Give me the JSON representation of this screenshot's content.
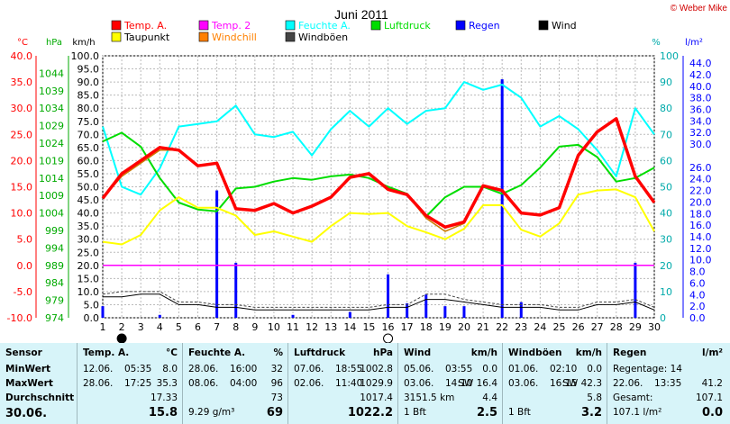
{
  "title": "Juni 2011",
  "copyright": "© Weber Mike",
  "colors": {
    "temp": "#ff0000",
    "taupunkt": "#ffff00",
    "feuchte": "#00ffff",
    "luftdruck": "#00dd00",
    "regen": "#0000ff",
    "wind": "#000000",
    "windboeen": "#444444",
    "windchill": "#ff8000",
    "temp2": "#ff00ff",
    "table_bg": "#d7f4f9"
  },
  "legend": [
    {
      "label": "Temp. A.",
      "color": "#ff0000"
    },
    {
      "label": "Temp. 2",
      "color": "#ff00ff"
    },
    {
      "label": "Feuchte A.",
      "color": "#00ffff"
    },
    {
      "label": "Luftdruck",
      "color": "#00dd00"
    },
    {
      "label": "Regen",
      "color": "#0000ff"
    },
    {
      "label": "Wind",
      "color": "#000000"
    },
    {
      "label": "Taupunkt",
      "color": "#ffff00"
    },
    {
      "label": "Windchill",
      "color": "#ff8000"
    },
    {
      "label": "Windböen",
      "color": "#444444"
    }
  ],
  "chart_data": {
    "type": "line",
    "title": "Juni 2011",
    "x": [
      1,
      2,
      3,
      4,
      5,
      6,
      7,
      8,
      9,
      10,
      11,
      12,
      13,
      14,
      15,
      16,
      17,
      18,
      19,
      20,
      21,
      22,
      23,
      24,
      25,
      26,
      27,
      28,
      29,
      30
    ],
    "axes": {
      "temp": {
        "unit": "°C",
        "min": -10,
        "max": 40,
        "ticks": [
          "40.0",
          "35.0",
          "30.0",
          "25.0",
          "20.0",
          "15.0",
          "10.0",
          "5.0",
          "0.0",
          "-5.0",
          "-10.0"
        ]
      },
      "pressure": {
        "unit": "hPa",
        "min": 974,
        "max": 1049,
        "ticks": [
          "1044",
          "1039",
          "1034",
          "1029",
          "1024",
          "1019",
          "1014",
          "1009",
          "1004",
          "999",
          "994",
          "989",
          "984",
          "979",
          "974"
        ]
      },
      "wind": {
        "unit": "km/h",
        "min": 0,
        "max": 100,
        "ticks": [
          "100.0",
          "95.0",
          "90.0",
          "85.0",
          "80.0",
          "75.0",
          "70.0",
          "65.0",
          "60.0",
          "55.0",
          "50.0",
          "45.0",
          "40.0",
          "35.0",
          "30.0",
          "25.0",
          "20.0",
          "15.0",
          "10.0",
          "5.0",
          "0.0"
        ]
      },
      "humidity": {
        "unit": "%",
        "min": 0,
        "max": 100,
        "ticks": [
          "100",
          "90",
          "80",
          "70",
          "60",
          "50",
          "40",
          "30",
          "20",
          "10",
          "0"
        ]
      },
      "rain": {
        "unit": "l/m²",
        "ticks": [
          "44.0",
          "42.0",
          "40.0",
          "38.0",
          "36.0",
          "34.0",
          "32.0",
          "30.0",
          "26.0",
          "24.0",
          "22.0",
          "20.0",
          "18.0",
          "16.0",
          "14.0",
          "12.0",
          "10.0",
          "8.0",
          "6.0",
          "4.0",
          "2.0",
          "0.0"
        ]
      }
    },
    "series": [
      {
        "name": "Temp. A.",
        "axis": "temp",
        "values": [
          12.8,
          17.5,
          20.0,
          22.5,
          22.0,
          19.0,
          19.5,
          10.8,
          10.5,
          11.8,
          10.0,
          11.3,
          13.0,
          16.8,
          17.5,
          14.5,
          13.5,
          9.5,
          7.3,
          8.3,
          15.2,
          14.3,
          10.0,
          9.6,
          11.0,
          21.0,
          25.5,
          28.0,
          17.0,
          12.0
        ]
      },
      {
        "name": "Taupunkt",
        "axis": "temp",
        "values": [
          4.5,
          4.0,
          5.8,
          10.5,
          13.0,
          11.0,
          11.0,
          9.5,
          5.8,
          6.5,
          5.5,
          4.5,
          7.5,
          10.0,
          9.8,
          10.0,
          7.5,
          6.3,
          5.0,
          7.0,
          11.5,
          11.5,
          6.8,
          5.5,
          8.0,
          13.5,
          14.3,
          14.5,
          13.0,
          6.5
        ]
      },
      {
        "name": "Feuchte A.",
        "axis": "humidity",
        "values": [
          73,
          50,
          47,
          57,
          73,
          74,
          75,
          81,
          70,
          69,
          71,
          62,
          72,
          79,
          73,
          80,
          74,
          79,
          80,
          90,
          87,
          89,
          84,
          73,
          77,
          72,
          64,
          54,
          80,
          70
        ]
      },
      {
        "name": "Luftdruck",
        "axis": "pressure",
        "values": [
          1024.5,
          1027.0,
          1023.0,
          1014.0,
          1007.0,
          1005.0,
          1004.5,
          1011.0,
          1011.5,
          1013.0,
          1014.0,
          1013.5,
          1014.5,
          1015.0,
          1014.0,
          1011.5,
          1009.5,
          1003.0,
          1008.5,
          1011.5,
          1011.5,
          1009.5,
          1012.0,
          1017.0,
          1023.0,
          1023.5,
          1020.0,
          1013.0,
          1014.0,
          1017.0
        ]
      },
      {
        "name": "Windchill",
        "axis": "temp",
        "values": [
          12.8,
          17.0,
          19.5,
          22.0,
          22.0,
          19.0,
          19.5,
          10.8,
          10.5,
          11.8,
          10.0,
          11.3,
          13.0,
          16.8,
          17.5,
          14.5,
          13.5,
          9.0,
          6.5,
          8.0,
          15.2,
          14.3,
          10.0,
          9.6,
          11.0,
          21.0,
          25.5,
          28.0,
          17.0,
          12.0
        ]
      },
      {
        "name": "Wind",
        "axis": "wind",
        "values": [
          8,
          8,
          9,
          9,
          5,
          5,
          4,
          4,
          3,
          3,
          3,
          3,
          3,
          3,
          3,
          4,
          4,
          7,
          7,
          6,
          5,
          4,
          4,
          4,
          3,
          3,
          5,
          5,
          6,
          3
        ]
      },
      {
        "name": "Windböen",
        "axis": "wind",
        "values": [
          9,
          10,
          10,
          10,
          6,
          6,
          5,
          5,
          4,
          4,
          4,
          4,
          4,
          4,
          4,
          5,
          5,
          9,
          9,
          7,
          6,
          5,
          5,
          5,
          4,
          4,
          6,
          6,
          7,
          4
        ]
      },
      {
        "name": "Temp. 2",
        "axis": "temp",
        "values": [
          0,
          0,
          0,
          0,
          0,
          0,
          0,
          0,
          0,
          0,
          0,
          0,
          0,
          0,
          0,
          0,
          0,
          0,
          0,
          0,
          0,
          0,
          0,
          0,
          0,
          0,
          0,
          0,
          0,
          0
        ]
      }
    ],
    "rain_bars": [
      {
        "x": 1,
        "value": 2.0
      },
      {
        "x": 4,
        "value": 0.5
      },
      {
        "x": 7,
        "value": 22.0
      },
      {
        "x": 8,
        "value": 9.5
      },
      {
        "x": 11,
        "value": 0.5
      },
      {
        "x": 14,
        "value": 1.0
      },
      {
        "x": 16,
        "value": 7.5
      },
      {
        "x": 17,
        "value": 2.5
      },
      {
        "x": 18,
        "value": 4.0
      },
      {
        "x": 19,
        "value": 2.0
      },
      {
        "x": 20,
        "value": 2.0
      },
      {
        "x": 22,
        "value": 41.2
      },
      {
        "x": 23,
        "value": 2.7
      },
      {
        "x": 29,
        "value": 9.5
      }
    ],
    "moon_markers": [
      {
        "day": 2,
        "phase": "new"
      },
      {
        "day": 16,
        "phase": "full"
      }
    ]
  },
  "axis_unit_labels": [
    "°C",
    "hPa",
    "km/h",
    "%",
    "l/m²"
  ],
  "table": {
    "columns": [
      {
        "header": "Sensor",
        "rows": [
          "MinWert",
          "MaxWert",
          "Durchschnitt"
        ],
        "footer": "30.06."
      },
      {
        "header": "Temp. A.",
        "unit": "°C",
        "rows": [
          [
            "12.06.",
            "05:35",
            "8.0"
          ],
          [
            "28.06.",
            "17:25",
            "35.3"
          ],
          [
            "",
            "",
            "17.33"
          ]
        ],
        "footer": "15.8"
      },
      {
        "header": "Feuchte A.",
        "unit": "%",
        "rows": [
          [
            "28.06.",
            "16:00",
            "32"
          ],
          [
            "08.06.",
            "04:00",
            "96"
          ],
          [
            "",
            "",
            "73"
          ]
        ],
        "footer_left": "9.29 g/m³",
        "footer": "69"
      },
      {
        "header": "Luftdruck",
        "unit": "hPa",
        "rows": [
          [
            "07.06.",
            "18:55",
            "1002.8"
          ],
          [
            "02.06.",
            "11:40",
            "1029.9"
          ],
          [
            "",
            "",
            "1017.4"
          ]
        ],
        "footer": "1022.2"
      },
      {
        "header": "Wind",
        "unit": "km/h",
        "rows": [
          [
            "05.06.",
            "03:55",
            "0.0"
          ],
          [
            "03.06.",
            "14:10",
            "SW 16.4"
          ],
          [
            "3151.5 km",
            "",
            "4.4"
          ]
        ],
        "footer_left": "1 Bft",
        "footer": "2.5"
      },
      {
        "header": "Windböen",
        "unit": "km/h",
        "rows": [
          [
            "01.06.",
            "02:10",
            "0.0"
          ],
          [
            "03.06.",
            "16:15",
            "SW 42.3"
          ],
          [
            "",
            "",
            "5.8"
          ]
        ],
        "footer_left": "1 Bft",
        "footer": "3.2"
      },
      {
        "header": "Regen",
        "unit": "l/m²",
        "rows": [
          [
            "Regentage: 14",
            "",
            ""
          ],
          [
            "22.06.",
            "13:35",
            "41.2"
          ],
          [
            "Gesamt:",
            "",
            "107.1"
          ]
        ],
        "footer_left": "107.1 l/m²",
        "footer": "0.0"
      }
    ]
  }
}
